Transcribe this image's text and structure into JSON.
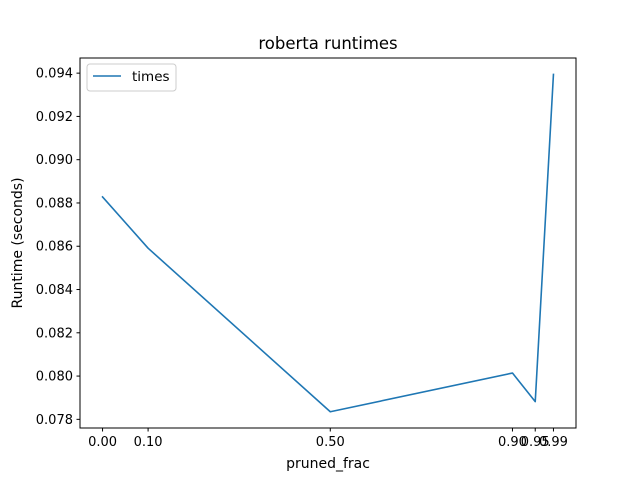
{
  "chart_data": {
    "type": "line",
    "title": "roberta runtimes",
    "xlabel": "pruned_frac",
    "ylabel": "Runtime (seconds)",
    "xlim": [
      -0.0495,
      1.0395
    ],
    "ylim": [
      0.0776,
      0.0947
    ],
    "xticks": [
      0.0,
      0.1,
      0.5,
      0.9,
      0.95,
      0.99
    ],
    "xtick_labels": [
      "0.00",
      "0.10",
      "0.50",
      "0.90",
      "0.95",
      "0.99"
    ],
    "yticks": [
      0.078,
      0.08,
      0.082,
      0.084,
      0.086,
      0.088,
      0.09,
      0.092,
      0.094
    ],
    "ytick_labels": [
      "0.078",
      "0.080",
      "0.082",
      "0.084",
      "0.086",
      "0.088",
      "0.090",
      "0.092",
      "0.094"
    ],
    "grid": false,
    "legend_position": "upper-left",
    "series": [
      {
        "name": "times",
        "color": "#1f77b4",
        "x": [
          0.0,
          0.1,
          0.5,
          0.9,
          0.95,
          0.99
        ],
        "y": [
          0.08828,
          0.08591,
          0.07835,
          0.08014,
          0.07882,
          0.09394
        ]
      }
    ]
  }
}
